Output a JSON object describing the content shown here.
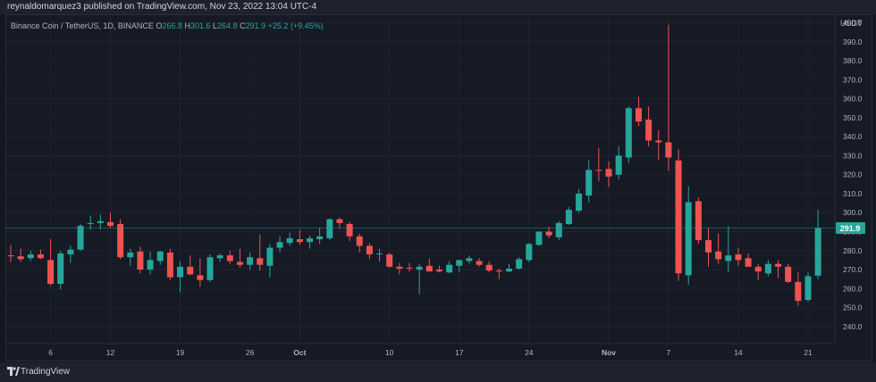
{
  "header": {
    "published_by": "reynaldomarquez3 published on TradingView.com, Nov 23, 2022 13:04 UTC-4"
  },
  "legend": {
    "symbol": "Binance Coin / TetherUS, 1D, BINANCE",
    "o_label": "O",
    "o_value": "266.8",
    "h_label": "H",
    "h_value": "301.6",
    "l_label": "L",
    "l_value": "264.8",
    "c_label": "C",
    "c_value": "291.9",
    "change": "+25.2 (+9.45%)"
  },
  "footer": {
    "brand": "TradingView"
  },
  "colors": {
    "up": "#26a69a",
    "down": "#ef5350",
    "background": "#131722",
    "grid": "#1f2330",
    "axis_text": "#b2b5be",
    "price_tag": "#26a69a"
  },
  "chart_data": {
    "type": "candlestick",
    "title": "Binance Coin / TetherUS, 1D, BINANCE",
    "ylabel": "USDT",
    "ylim": [
      231,
      404
    ],
    "y_ticks": [
      240,
      250,
      260,
      270,
      280,
      290,
      300,
      310,
      320,
      330,
      340,
      350,
      360,
      370,
      380,
      390,
      400
    ],
    "y_tick_labels": [
      "240.0",
      "250.0",
      "260.0",
      "270.0",
      "280.0",
      "290.0",
      "300.0",
      "310.0",
      "320.0",
      "330.0",
      "340.0",
      "350.0",
      "360.0",
      "370.0",
      "380.0",
      "390.0",
      "400.0"
    ],
    "x_tick_labels": [
      {
        "day": 4,
        "label": "6"
      },
      {
        "day": 10,
        "label": "12"
      },
      {
        "day": 17,
        "label": "19"
      },
      {
        "day": 24,
        "label": "26"
      },
      {
        "day": 29,
        "label": "Oct"
      },
      {
        "day": 38,
        "label": "10"
      },
      {
        "day": 45,
        "label": "17"
      },
      {
        "day": 52,
        "label": "24"
      },
      {
        "day": 60,
        "label": "Nov"
      },
      {
        "day": 66,
        "label": "7"
      },
      {
        "day": 73,
        "label": "14"
      },
      {
        "day": 80,
        "label": "21"
      }
    ],
    "last_price": 291.9,
    "last_price_label": "291.9",
    "grid": true,
    "candles": [
      {
        "o": 277.5,
        "h": 283.0,
        "l": 274.0,
        "c": 277.0
      },
      {
        "o": 277.0,
        "h": 281.0,
        "l": 274.0,
        "c": 275.5
      },
      {
        "o": 276.0,
        "h": 280.0,
        "l": 274.5,
        "c": 278.0
      },
      {
        "o": 278.0,
        "h": 280.5,
        "l": 275.5,
        "c": 276.0
      },
      {
        "o": 275.0,
        "h": 286.0,
        "l": 261.5,
        "c": 262.5
      },
      {
        "o": 262.5,
        "h": 280.0,
        "l": 259.5,
        "c": 278.5
      },
      {
        "o": 278.0,
        "h": 282.5,
        "l": 273.5,
        "c": 280.5
      },
      {
        "o": 280.5,
        "h": 294.0,
        "l": 280.0,
        "c": 293.0
      },
      {
        "o": 294.0,
        "h": 298.5,
        "l": 291.0,
        "c": 294.5
      },
      {
        "o": 294.5,
        "h": 299.0,
        "l": 291.0,
        "c": 295.5
      },
      {
        "o": 295.0,
        "h": 300.0,
        "l": 292.0,
        "c": 293.0
      },
      {
        "o": 294.0,
        "h": 296.5,
        "l": 275.5,
        "c": 276.5
      },
      {
        "o": 276.5,
        "h": 281.0,
        "l": 272.0,
        "c": 279.0
      },
      {
        "o": 279.5,
        "h": 282.0,
        "l": 268.0,
        "c": 270.0
      },
      {
        "o": 270.0,
        "h": 279.5,
        "l": 267.5,
        "c": 275.0
      },
      {
        "o": 274.5,
        "h": 280.0,
        "l": 272.5,
        "c": 279.5
      },
      {
        "o": 279.0,
        "h": 281.0,
        "l": 264.5,
        "c": 266.0
      },
      {
        "o": 266.0,
        "h": 274.5,
        "l": 258.0,
        "c": 271.5
      },
      {
        "o": 271.5,
        "h": 277.5,
        "l": 267.0,
        "c": 267.5
      },
      {
        "o": 267.0,
        "h": 276.0,
        "l": 261.0,
        "c": 264.5
      },
      {
        "o": 264.5,
        "h": 278.0,
        "l": 263.5,
        "c": 276.5
      },
      {
        "o": 276.0,
        "h": 278.5,
        "l": 274.0,
        "c": 277.5
      },
      {
        "o": 277.5,
        "h": 280.0,
        "l": 273.0,
        "c": 274.5
      },
      {
        "o": 274.0,
        "h": 281.0,
        "l": 271.0,
        "c": 272.5
      },
      {
        "o": 272.5,
        "h": 279.0,
        "l": 270.0,
        "c": 276.5
      },
      {
        "o": 276.0,
        "h": 288.5,
        "l": 269.5,
        "c": 272.5
      },
      {
        "o": 272.0,
        "h": 283.5,
        "l": 266.0,
        "c": 281.5
      },
      {
        "o": 281.5,
        "h": 287.5,
        "l": 279.0,
        "c": 284.5
      },
      {
        "o": 284.0,
        "h": 289.5,
        "l": 282.5,
        "c": 286.5
      },
      {
        "o": 286.0,
        "h": 291.0,
        "l": 283.0,
        "c": 284.5
      },
      {
        "o": 284.5,
        "h": 288.0,
        "l": 281.0,
        "c": 286.5
      },
      {
        "o": 286.0,
        "h": 292.0,
        "l": 283.5,
        "c": 287.5
      },
      {
        "o": 286.5,
        "h": 297.0,
        "l": 285.5,
        "c": 296.5
      },
      {
        "o": 296.5,
        "h": 297.5,
        "l": 291.5,
        "c": 294.5
      },
      {
        "o": 294.0,
        "h": 295.0,
        "l": 285.0,
        "c": 287.5
      },
      {
        "o": 287.5,
        "h": 289.0,
        "l": 279.0,
        "c": 282.5
      },
      {
        "o": 282.5,
        "h": 284.0,
        "l": 275.5,
        "c": 278.0
      },
      {
        "o": 278.0,
        "h": 281.0,
        "l": 274.0,
        "c": 278.5
      },
      {
        "o": 278.0,
        "h": 279.0,
        "l": 271.0,
        "c": 271.5
      },
      {
        "o": 271.5,
        "h": 273.5,
        "l": 267.5,
        "c": 270.5
      },
      {
        "o": 271.0,
        "h": 273.5,
        "l": 269.0,
        "c": 270.5
      },
      {
        "o": 270.0,
        "h": 273.0,
        "l": 257.0,
        "c": 271.5
      },
      {
        "o": 272.0,
        "h": 276.0,
        "l": 269.5,
        "c": 269.0
      },
      {
        "o": 270.0,
        "h": 272.0,
        "l": 268.5,
        "c": 269.0
      },
      {
        "o": 268.5,
        "h": 274.5,
        "l": 268.0,
        "c": 272.5
      },
      {
        "o": 272.0,
        "h": 275.0,
        "l": 268.5,
        "c": 275.0
      },
      {
        "o": 274.5,
        "h": 277.5,
        "l": 273.0,
        "c": 276.0
      },
      {
        "o": 274.5,
        "h": 276.0,
        "l": 271.5,
        "c": 272.5
      },
      {
        "o": 272.5,
        "h": 274.5,
        "l": 268.5,
        "c": 269.5
      },
      {
        "o": 269.5,
        "h": 270.5,
        "l": 265.0,
        "c": 269.0
      },
      {
        "o": 269.0,
        "h": 273.0,
        "l": 268.5,
        "c": 270.5
      },
      {
        "o": 270.5,
        "h": 276.5,
        "l": 270.0,
        "c": 275.5
      },
      {
        "o": 275.0,
        "h": 284.0,
        "l": 274.0,
        "c": 283.5
      },
      {
        "o": 283.0,
        "h": 290.0,
        "l": 282.5,
        "c": 290.0
      },
      {
        "o": 290.0,
        "h": 292.5,
        "l": 286.5,
        "c": 288.0
      },
      {
        "o": 287.0,
        "h": 295.5,
        "l": 285.5,
        "c": 294.5
      },
      {
        "o": 294.0,
        "h": 303.0,
        "l": 293.5,
        "c": 301.5
      },
      {
        "o": 301.0,
        "h": 312.5,
        "l": 300.0,
        "c": 310.0
      },
      {
        "o": 309.0,
        "h": 327.5,
        "l": 305.5,
        "c": 322.5
      },
      {
        "o": 322.5,
        "h": 334.0,
        "l": 316.5,
        "c": 322.0
      },
      {
        "o": 323.0,
        "h": 327.0,
        "l": 313.5,
        "c": 319.0
      },
      {
        "o": 320.0,
        "h": 335.0,
        "l": 317.5,
        "c": 330.0
      },
      {
        "o": 329.0,
        "h": 356.0,
        "l": 326.0,
        "c": 355.0
      },
      {
        "o": 355.0,
        "h": 361.0,
        "l": 345.5,
        "c": 348.0
      },
      {
        "o": 349.0,
        "h": 356.0,
        "l": 335.0,
        "c": 338.0
      },
      {
        "o": 338.0,
        "h": 343.5,
        "l": 327.5,
        "c": 337.0
      },
      {
        "o": 337.0,
        "h": 399.0,
        "l": 322.0,
        "c": 329.0
      },
      {
        "o": 327.5,
        "h": 333.5,
        "l": 264.0,
        "c": 268.0
      },
      {
        "o": 267.0,
        "h": 314.0,
        "l": 262.0,
        "c": 305.5
      },
      {
        "o": 306.0,
        "h": 308.0,
        "l": 283.5,
        "c": 285.5
      },
      {
        "o": 285.5,
        "h": 292.0,
        "l": 271.5,
        "c": 279.0
      },
      {
        "o": 279.5,
        "h": 289.0,
        "l": 273.0,
        "c": 275.5
      },
      {
        "o": 274.5,
        "h": 293.0,
        "l": 268.5,
        "c": 277.5
      },
      {
        "o": 278.0,
        "h": 281.5,
        "l": 272.0,
        "c": 275.0
      },
      {
        "o": 276.0,
        "h": 278.5,
        "l": 271.5,
        "c": 271.5
      },
      {
        "o": 271.5,
        "h": 273.0,
        "l": 264.5,
        "c": 269.0
      },
      {
        "o": 268.0,
        "h": 275.0,
        "l": 266.5,
        "c": 273.0
      },
      {
        "o": 273.0,
        "h": 275.0,
        "l": 265.5,
        "c": 271.5
      },
      {
        "o": 271.5,
        "h": 273.0,
        "l": 263.0,
        "c": 263.5
      },
      {
        "o": 263.5,
        "h": 268.5,
        "l": 251.0,
        "c": 253.5
      },
      {
        "o": 254.0,
        "h": 268.5,
        "l": 253.0,
        "c": 266.5
      },
      {
        "o": 266.8,
        "h": 301.6,
        "l": 264.8,
        "c": 291.9
      }
    ]
  }
}
